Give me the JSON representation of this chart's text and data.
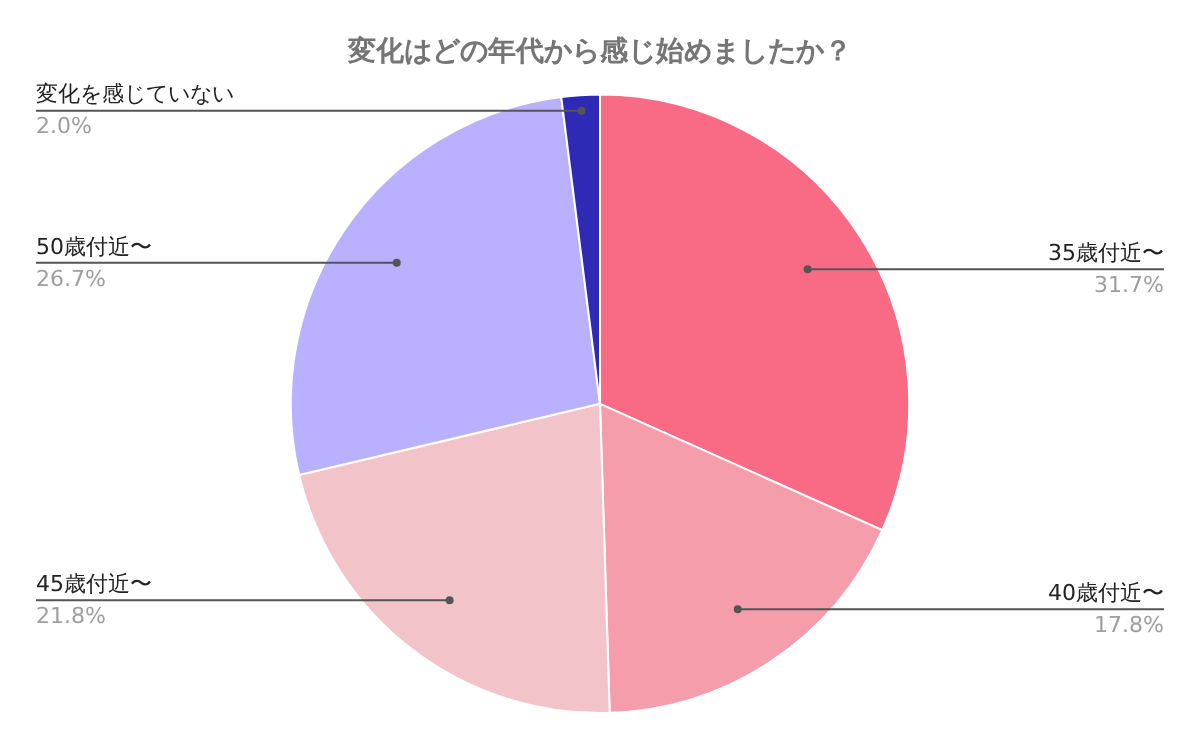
{
  "chart_data": {
    "type": "pie",
    "title": "変化はどの年代から感じ始めましたか？",
    "categories": [
      "35歳付近〜",
      "40歳付近〜",
      "45歳付近〜",
      "50歳付近〜",
      "変化を感じていない"
    ],
    "values": [
      31.7,
      17.8,
      21.8,
      26.7,
      2.0
    ],
    "colors": [
      "#f96b85",
      "#f59daa",
      "#f2c4c9",
      "#b9b1ff",
      "#2e2ab5"
    ],
    "value_labels": [
      "31.7%",
      "17.8%",
      "21.8%",
      "26.7%",
      "2.0%"
    ],
    "legend": false
  }
}
